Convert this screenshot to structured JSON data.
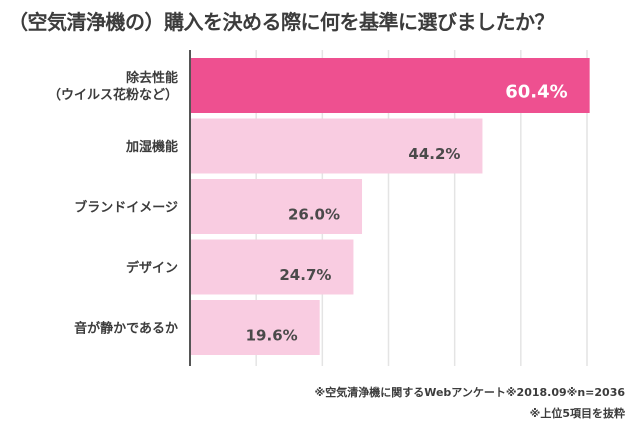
{
  "chart_data": {
    "type": "bar",
    "orientation": "horizontal",
    "title": "（空気清浄機の）購入を決める際に何を基準に選びましたか？",
    "categories": [
      [
        "除去性能",
        "（ウイルス花粉など）"
      ],
      [
        "加湿機能"
      ],
      [
        "ブランドイメージ"
      ],
      [
        "デザイン"
      ],
      [
        "音が静かであるか"
      ]
    ],
    "values": [
      60.4,
      44.2,
      26.0,
      24.7,
      19.6
    ],
    "value_labels": [
      "60.4%",
      "44.2%",
      "26.0%",
      "24.7%",
      "19.6%"
    ],
    "xlim": [
      0,
      60
    ],
    "grid_step": 10,
    "grid": true,
    "xlabel": "",
    "ylabel": "",
    "colors": {
      "highlight": "#ee5090",
      "normal": "#f9cce1",
      "highlight_text": "#ffffff",
      "normal_text": "#4a4a4a",
      "axis": "#555555",
      "grid": "#e4e4e4"
    }
  },
  "footnotes": [
    "※空気清浄機に関するWebアンケート※2018.09※n=2036",
    "※上位5項目を抜粋"
  ]
}
